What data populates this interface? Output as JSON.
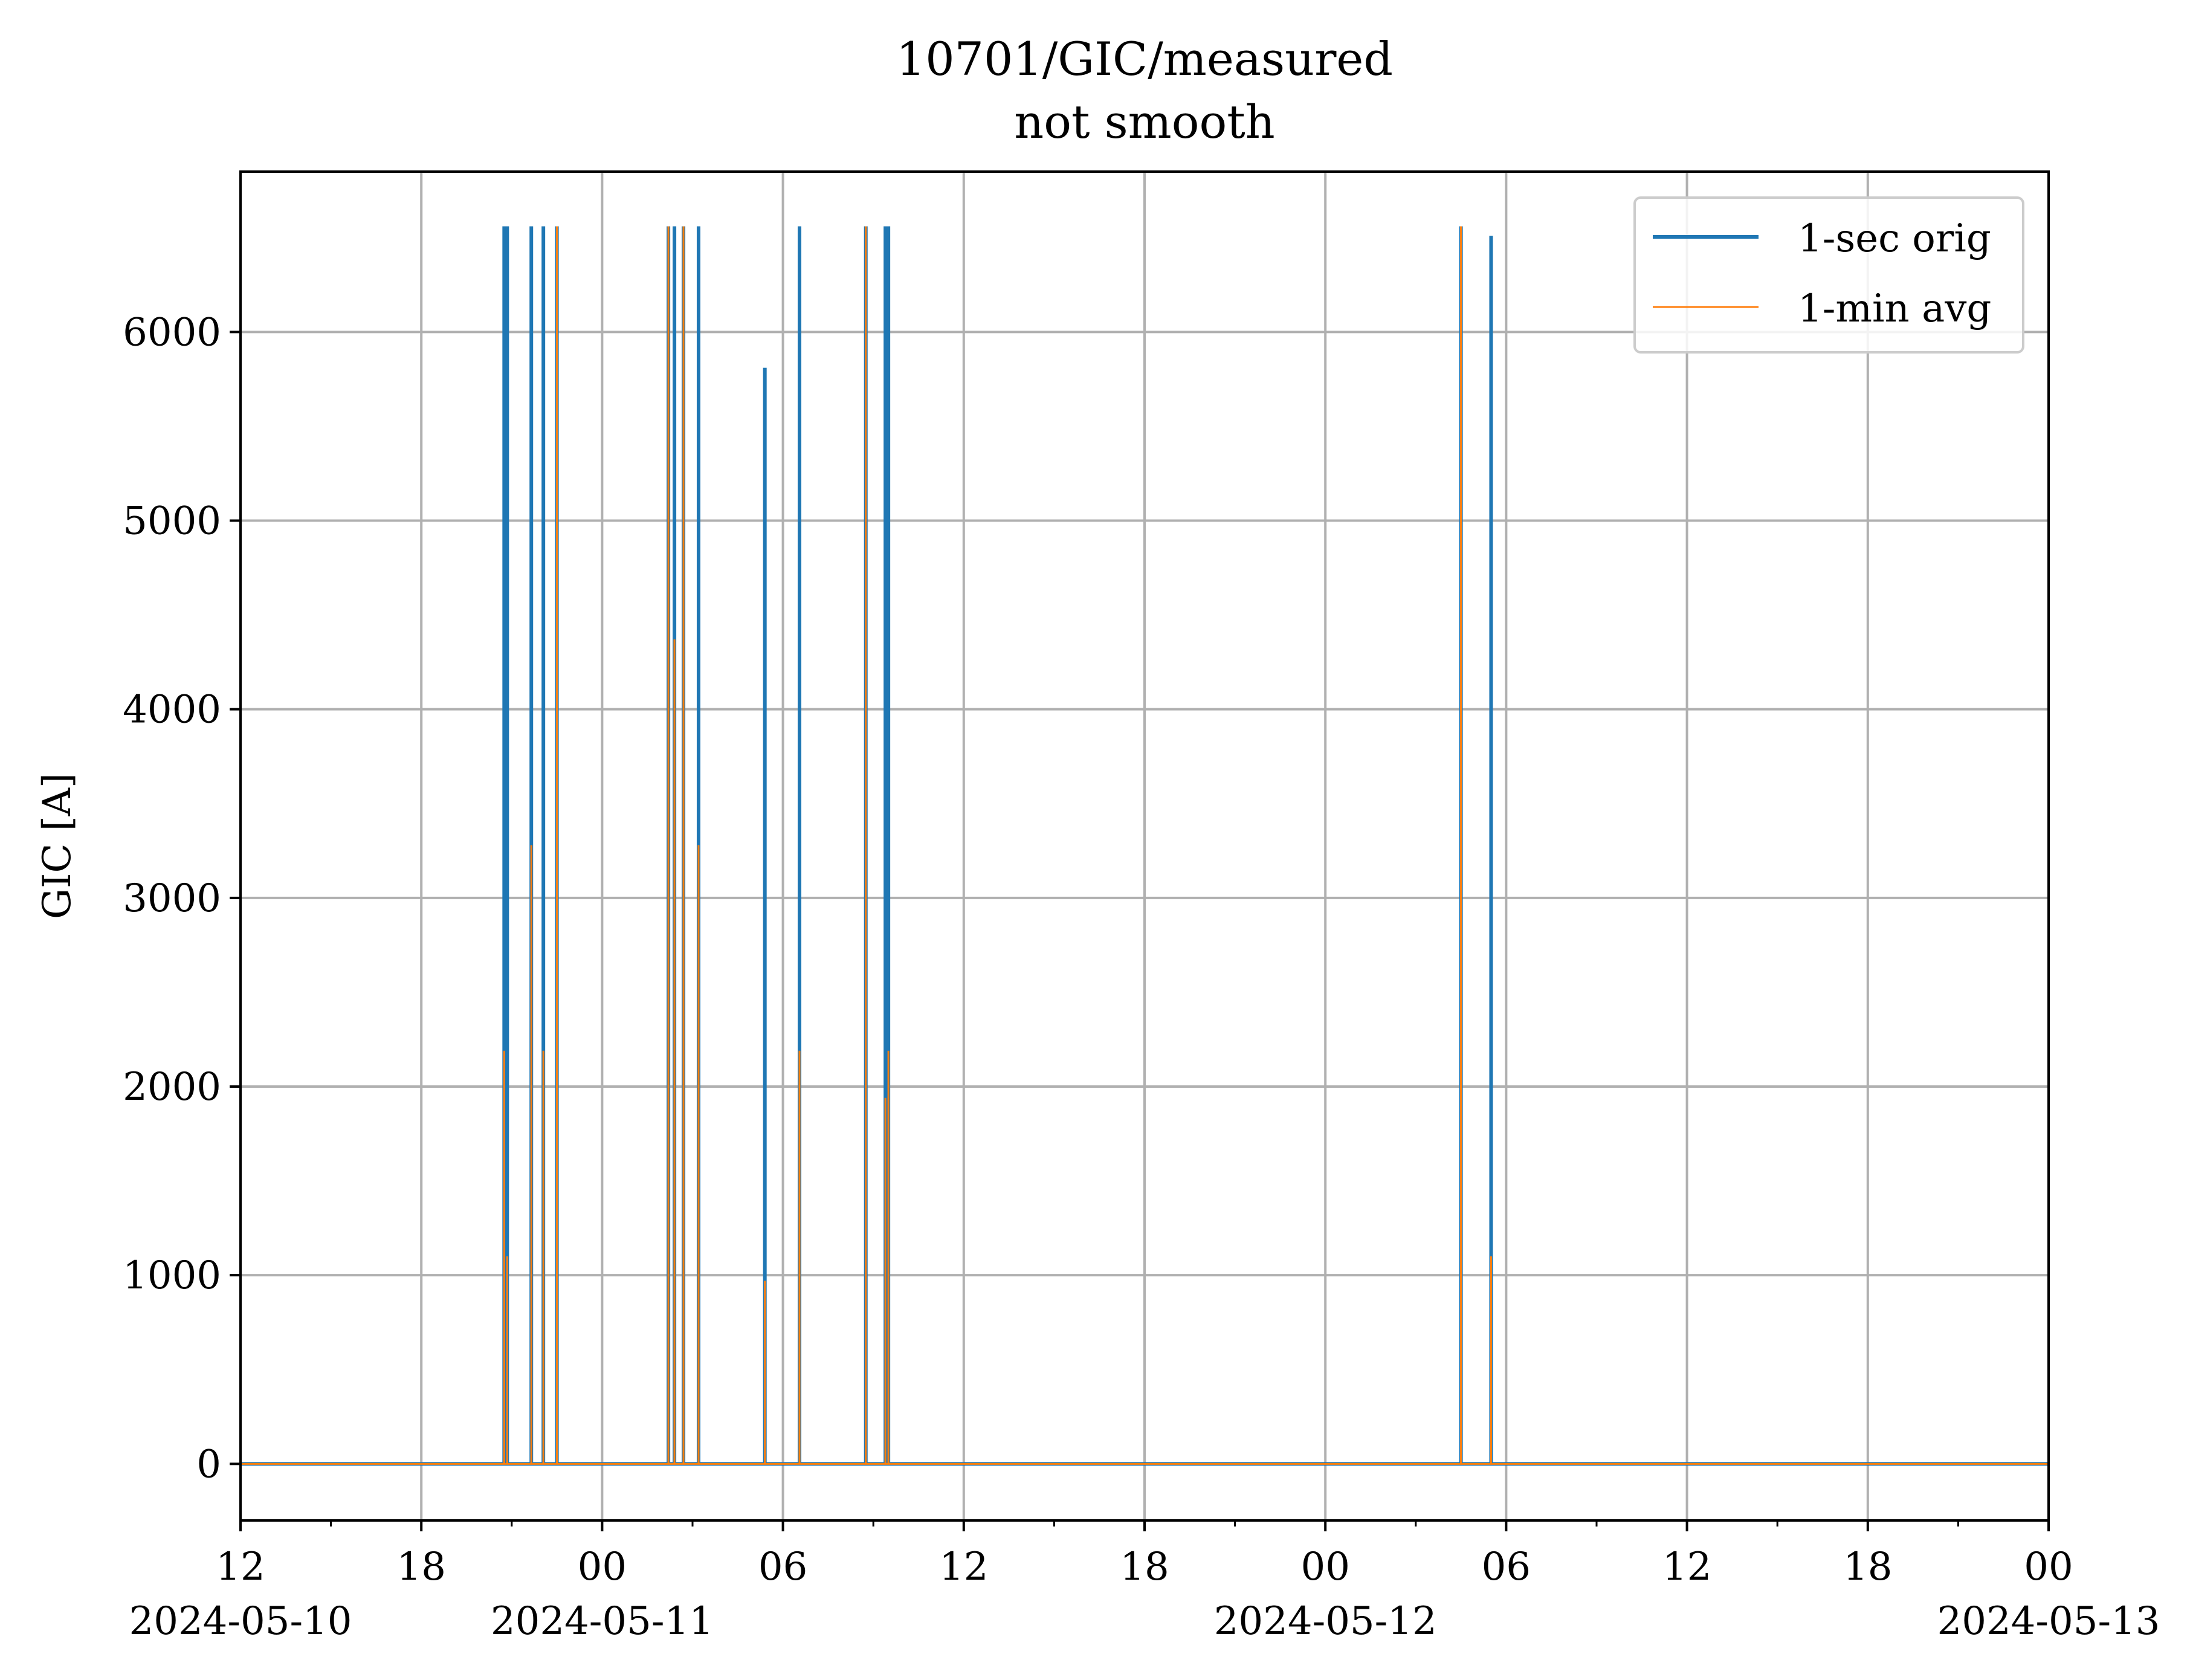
{
  "chart_data": {
    "type": "line",
    "title": "10701/GIC/measured",
    "subtitle": "not smooth",
    "xlabel": "",
    "ylabel": "GIC [A]",
    "x_start": "2024-05-10 12:00",
    "x_end": "2024-05-13 00:00",
    "ylim": [
      -300,
      6850
    ],
    "grid": true,
    "legend_position": "top-right",
    "x_ticks": [
      {
        "time": "2024-05-10 12:00",
        "label": "12",
        "date_label": "2024-05-10"
      },
      {
        "time": "2024-05-10 18:00",
        "label": "18",
        "date_label": ""
      },
      {
        "time": "2024-05-11 00:00",
        "label": "00",
        "date_label": "2024-05-11"
      },
      {
        "time": "2024-05-11 06:00",
        "label": "06",
        "date_label": ""
      },
      {
        "time": "2024-05-11 12:00",
        "label": "12",
        "date_label": ""
      },
      {
        "time": "2024-05-11 18:00",
        "label": "18",
        "date_label": ""
      },
      {
        "time": "2024-05-12 00:00",
        "label": "00",
        "date_label": "2024-05-12"
      },
      {
        "time": "2024-05-12 06:00",
        "label": "06",
        "date_label": ""
      },
      {
        "time": "2024-05-12 12:00",
        "label": "12",
        "date_label": ""
      },
      {
        "time": "2024-05-12 18:00",
        "label": "18",
        "date_label": ""
      },
      {
        "time": "2024-05-13 00:00",
        "label": "00",
        "date_label": "2024-05-13"
      }
    ],
    "x_minor_ticks": [
      "2024-05-10 15:00",
      "2024-05-10 21:00",
      "2024-05-11 03:00",
      "2024-05-11 09:00",
      "2024-05-11 15:00",
      "2024-05-11 21:00",
      "2024-05-12 03:00",
      "2024-05-12 09:00",
      "2024-05-12 15:00",
      "2024-05-12 21:00"
    ],
    "y_ticks": [
      0,
      1000,
      2000,
      3000,
      4000,
      5000,
      6000
    ],
    "series": [
      {
        "name": "1-sec orig",
        "color": "#1f77b4",
        "baseline": 0,
        "spikes": [
          {
            "time": "2024-05-10 20:45",
            "value": 6560
          },
          {
            "time": "2024-05-10 20:51",
            "value": 6560
          },
          {
            "time": "2024-05-10 21:39",
            "value": 6560
          },
          {
            "time": "2024-05-10 22:03",
            "value": 6560
          },
          {
            "time": "2024-05-10 22:30",
            "value": 6560
          },
          {
            "time": "2024-05-11 02:12",
            "value": 6560
          },
          {
            "time": "2024-05-11 02:24",
            "value": 6560
          },
          {
            "time": "2024-05-11 02:42",
            "value": 6560
          },
          {
            "time": "2024-05-11 03:12",
            "value": 6560
          },
          {
            "time": "2024-05-11 05:24",
            "value": 5810
          },
          {
            "time": "2024-05-11 06:33",
            "value": 6560
          },
          {
            "time": "2024-05-11 08:45",
            "value": 6560
          },
          {
            "time": "2024-05-11 09:24",
            "value": 6560
          },
          {
            "time": "2024-05-11 09:30",
            "value": 6560
          },
          {
            "time": "2024-05-12 04:30",
            "value": 6560
          },
          {
            "time": "2024-05-12 05:30",
            "value": 6510
          }
        ]
      },
      {
        "name": "1-min avg",
        "color": "#ff7f0e",
        "baseline": 0,
        "spikes": [
          {
            "time": "2024-05-10 20:45",
            "value": 2190
          },
          {
            "time": "2024-05-10 20:51",
            "value": 1100
          },
          {
            "time": "2024-05-10 21:39",
            "value": 3280
          },
          {
            "time": "2024-05-10 22:03",
            "value": 2190
          },
          {
            "time": "2024-05-10 22:30",
            "value": 6560
          },
          {
            "time": "2024-05-11 02:12",
            "value": 6560
          },
          {
            "time": "2024-05-11 02:24",
            "value": 4370
          },
          {
            "time": "2024-05-11 02:42",
            "value": 6560
          },
          {
            "time": "2024-05-11 03:12",
            "value": 3280
          },
          {
            "time": "2024-05-11 05:24",
            "value": 970
          },
          {
            "time": "2024-05-11 06:33",
            "value": 2190
          },
          {
            "time": "2024-05-11 08:45",
            "value": 6560
          },
          {
            "time": "2024-05-11 09:24",
            "value": 1940
          },
          {
            "time": "2024-05-11 09:30",
            "value": 2190
          },
          {
            "time": "2024-05-12 04:30",
            "value": 6560
          },
          {
            "time": "2024-05-12 05:30",
            "value": 1100
          }
        ]
      }
    ]
  }
}
